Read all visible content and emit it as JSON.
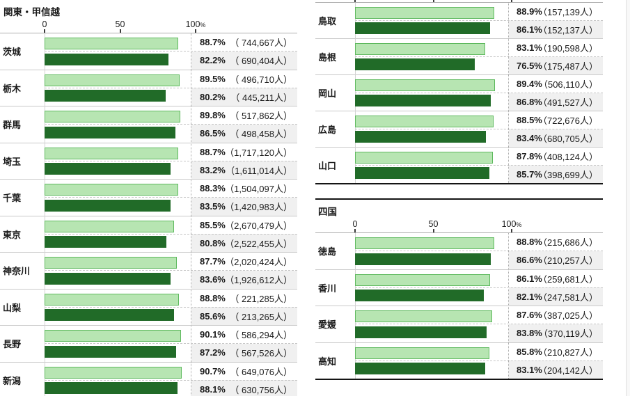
{
  "colors": {
    "light_bar_fill": "#b7e5b2",
    "light_bar_border": "#5eb95e",
    "dark_bar_fill": "#216b28",
    "alt_row_bg": "#f0f0f0",
    "separator": "#c9c9c9",
    "thick_rule": "#141414"
  },
  "axis": {
    "tick_labels": [
      "0",
      "50",
      "100"
    ],
    "tick_values": [
      0,
      50,
      100
    ],
    "unit_suffix": "%"
  },
  "chart_data": [
    {
      "type": "bar",
      "orientation": "horizontal",
      "title": "関東・甲信越",
      "xlim": [
        0,
        100
      ],
      "xticks": [
        0,
        50,
        100
      ],
      "grid": false,
      "legend": "none",
      "categories": [
        "茨城",
        "栃木",
        "群馬",
        "埼玉",
        "千葉",
        "東京",
        "神奈川",
        "山梨",
        "長野",
        "新潟"
      ],
      "series": [
        {
          "role": "upper-light",
          "values": [
            88.7,
            89.5,
            89.8,
            88.7,
            88.3,
            85.5,
            87.7,
            88.8,
            90.1,
            90.7
          ],
          "labels": [
            "88.7%",
            "89.5%",
            "89.8%",
            "88.7%",
            "88.3%",
            "85.5%",
            "87.7%",
            "88.8%",
            "90.1%",
            "90.7%"
          ],
          "counts": [
            "（ 744,667人）",
            "（ 496,710人）",
            "（ 517,862人）",
            "（1,717,120人）",
            "（1,504,097人）",
            "（2,670,479人）",
            "（2,020,424人）",
            "（ 221,285人）",
            "（ 586,294人）",
            "（ 649,076人）"
          ]
        },
        {
          "role": "lower-dark",
          "values": [
            82.2,
            80.2,
            86.5,
            83.2,
            83.5,
            80.8,
            83.6,
            85.6,
            87.2,
            88.1
          ],
          "labels": [
            "82.2%",
            "80.2%",
            "86.5%",
            "83.2%",
            "83.5%",
            "80.8%",
            "83.6%",
            "85.6%",
            "87.2%",
            "88.1%"
          ],
          "counts": [
            "（ 690,404人）",
            "（ 445,211人）",
            "（ 498,458人）",
            "（1,611,014人）",
            "（1,420,983人）",
            "（2,522,455人）",
            "（1,926,612人）",
            "（ 213,265人）",
            "（ 567,526人）",
            "（ 630,756人）"
          ]
        }
      ]
    },
    {
      "type": "bar",
      "orientation": "horizontal",
      "title": "",
      "xlim": [
        0,
        100
      ],
      "xticks": [
        0,
        50,
        100
      ],
      "grid": false,
      "legend": "none",
      "categories": [
        "鳥取",
        "島根",
        "岡山",
        "広島",
        "山口"
      ],
      "series": [
        {
          "role": "upper-light",
          "values": [
            88.9,
            83.1,
            89.4,
            88.5,
            87.8
          ],
          "labels": [
            "88.9%",
            "83.1%",
            "89.4%",
            "88.5%",
            "87.8%"
          ],
          "counts": [
            "（157,139人）",
            "（190,598人）",
            "（506,110人）",
            "（722,676人）",
            "（408,124人）"
          ]
        },
        {
          "role": "lower-dark",
          "values": [
            86.1,
            76.5,
            86.8,
            83.4,
            85.7
          ],
          "labels": [
            "86.1%",
            "76.5%",
            "86.8%",
            "83.4%",
            "85.7%"
          ],
          "counts": [
            "（152,137人）",
            "（175,487人）",
            "（491,527人）",
            "（680,705人）",
            "（398,699人）"
          ]
        }
      ]
    },
    {
      "type": "bar",
      "orientation": "horizontal",
      "title": "四国",
      "xlim": [
        0,
        100
      ],
      "xticks": [
        0,
        50,
        100
      ],
      "grid": false,
      "legend": "none",
      "categories": [
        "徳島",
        "香川",
        "愛媛",
        "高知"
      ],
      "series": [
        {
          "role": "upper-light",
          "values": [
            88.8,
            86.1,
            87.6,
            85.8
          ],
          "labels": [
            "88.8%",
            "86.1%",
            "87.6%",
            "85.8%"
          ],
          "counts": [
            "（215,686人）",
            "（259,681人）",
            "（387,025人）",
            "（210,827人）"
          ]
        },
        {
          "role": "lower-dark",
          "values": [
            86.6,
            82.1,
            83.8,
            83.1
          ],
          "labels": [
            "86.6%",
            "82.1%",
            "83.8%",
            "83.1%"
          ],
          "counts": [
            "（210,257人）",
            "（247,581人）",
            "（370,119人）",
            "（204,142人）"
          ]
        }
      ]
    }
  ]
}
